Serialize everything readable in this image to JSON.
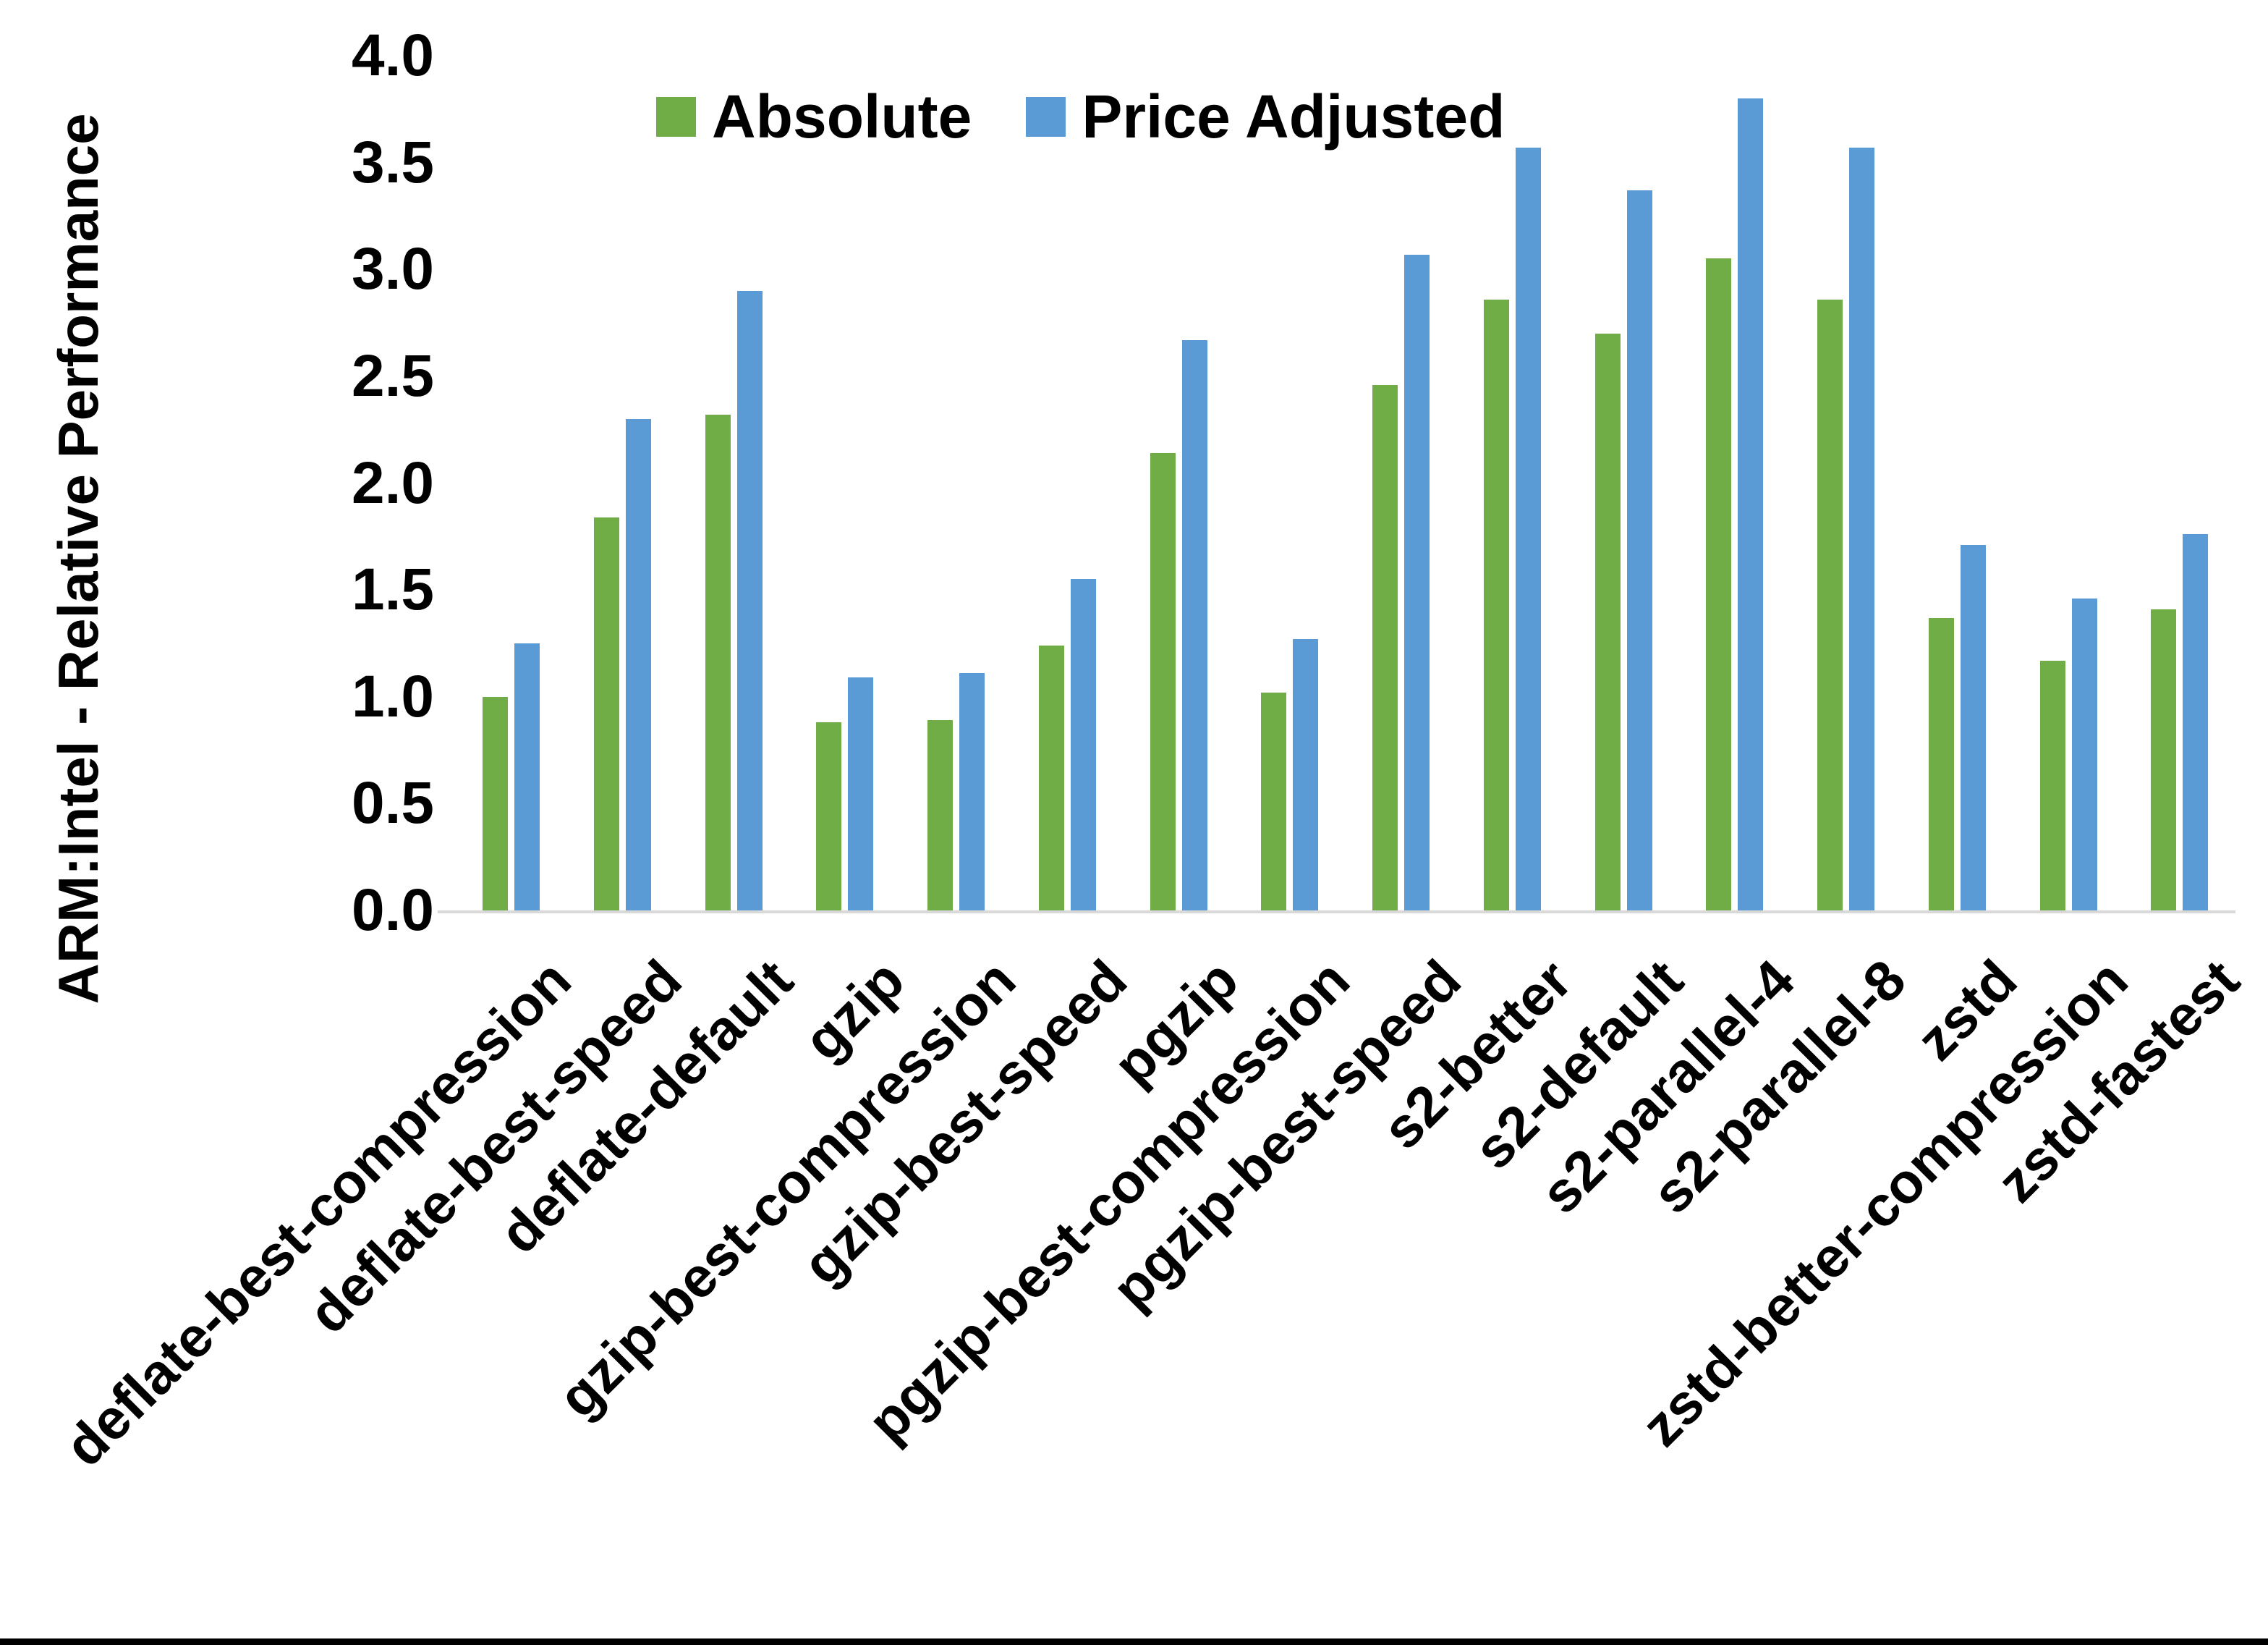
{
  "chart_data": {
    "type": "bar",
    "title": "",
    "xlabel": "",
    "ylabel": "ARM:Intel - Relative Performance",
    "ylim": [
      0.0,
      4.0
    ],
    "ytick_step": 0.5,
    "ytick_labels": [
      "0.0",
      "0.5",
      "1.0",
      "1.5",
      "2.0",
      "2.5",
      "3.0",
      "3.5",
      "4.0"
    ],
    "grid": false,
    "legend_position": "top-center",
    "axis_line_color": "#d9d9d9",
    "categories": [
      "deflate-best-compression",
      "deflate-best-speed",
      "deflate-default",
      "gzip",
      "gzip-best-compression",
      "gzip-best-speed",
      "pgzip",
      "pgzip-best-compression",
      "pgzip-best-speed",
      "s2-better",
      "s2-default",
      "s2-parallel-4",
      "s2-parallel-8",
      "zstd",
      "zstd-better-compression",
      "zstd-fastest"
    ],
    "series": [
      {
        "name": "Absolute",
        "color": "#70AD47",
        "values": [
          1.0,
          1.84,
          2.32,
          0.88,
          0.89,
          1.24,
          2.14,
          1.02,
          2.46,
          2.86,
          2.7,
          3.05,
          2.86,
          1.37,
          1.17,
          1.41
        ]
      },
      {
        "name": "Price Adjusted",
        "color": "#5B9BD5",
        "values": [
          1.25,
          2.3,
          2.9,
          1.09,
          1.11,
          1.55,
          2.67,
          1.27,
          3.07,
          3.57,
          3.37,
          3.8,
          3.57,
          1.71,
          1.46,
          1.76
        ]
      }
    ]
  }
}
